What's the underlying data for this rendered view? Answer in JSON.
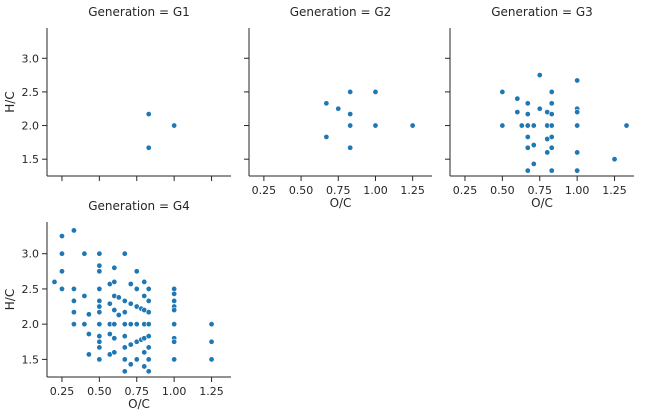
{
  "colors": {
    "point": "#1f77b4",
    "axis": "#262626"
  },
  "chart_data": [
    {
      "type": "scatter",
      "title": "Generation = G1",
      "xlabel": "",
      "ylabel": "H/C",
      "xlim": [
        0.15,
        1.38
      ],
      "ylim": [
        1.25,
        3.45
      ],
      "xticks": [
        0.25,
        0.5,
        0.75,
        1.0,
        1.25
      ],
      "xtick_labels": [],
      "yticks": [
        1.5,
        2.0,
        2.5,
        3.0
      ],
      "ytick_labels": [
        "1.5",
        "2.0",
        "2.5",
        "3.0"
      ],
      "points": [
        [
          0.83,
          2.17
        ],
        [
          0.83,
          1.67
        ],
        [
          1.0,
          2.0
        ]
      ]
    },
    {
      "type": "scatter",
      "title": "Generation = G2",
      "xlabel": "O/C",
      "ylabel": "",
      "xlim": [
        0.15,
        1.38
      ],
      "ylim": [
        1.25,
        3.45
      ],
      "xticks": [
        0.25,
        0.5,
        0.75,
        1.0,
        1.25
      ],
      "xtick_labels": [
        "0.25",
        "0.50",
        "0.75",
        "1.00",
        "1.25"
      ],
      "yticks": [
        1.5,
        2.0,
        2.5,
        3.0
      ],
      "ytick_labels": [],
      "points": [
        [
          0.67,
          2.33
        ],
        [
          0.67,
          1.83
        ],
        [
          0.75,
          2.25
        ],
        [
          0.83,
          2.5
        ],
        [
          0.83,
          2.17
        ],
        [
          0.83,
          2.0
        ],
        [
          0.83,
          1.67
        ],
        [
          1.0,
          2.5
        ],
        [
          1.0,
          2.0
        ],
        [
          1.25,
          2.0
        ]
      ]
    },
    {
      "type": "scatter",
      "title": "Generation = G3",
      "xlabel": "O/C",
      "ylabel": "",
      "xlim": [
        0.15,
        1.38
      ],
      "ylim": [
        1.25,
        3.45
      ],
      "xticks": [
        0.25,
        0.5,
        0.75,
        1.0,
        1.25
      ],
      "xtick_labels": [
        "0.25",
        "0.50",
        "0.75",
        "1.00",
        "1.25"
      ],
      "yticks": [
        1.5,
        2.0,
        2.5,
        3.0
      ],
      "ytick_labels": [],
      "points": [
        [
          0.5,
          2.5
        ],
        [
          0.5,
          2.0
        ],
        [
          0.6,
          2.4
        ],
        [
          0.6,
          2.2
        ],
        [
          0.63,
          2.0
        ],
        [
          0.67,
          2.33
        ],
        [
          0.67,
          2.17
        ],
        [
          0.67,
          2.0
        ],
        [
          0.67,
          1.83
        ],
        [
          0.67,
          1.67
        ],
        [
          0.67,
          1.33
        ],
        [
          0.71,
          2.0
        ],
        [
          0.71,
          1.71
        ],
        [
          0.71,
          1.43
        ],
        [
          0.75,
          2.75
        ],
        [
          0.75,
          2.25
        ],
        [
          0.8,
          2.2
        ],
        [
          0.8,
          2.0
        ],
        [
          0.8,
          1.8
        ],
        [
          0.8,
          1.6
        ],
        [
          0.83,
          2.5
        ],
        [
          0.83,
          2.33
        ],
        [
          0.83,
          2.17
        ],
        [
          0.83,
          2.0
        ],
        [
          0.83,
          1.83
        ],
        [
          0.83,
          1.67
        ],
        [
          0.83,
          1.33
        ],
        [
          1.0,
          2.67
        ],
        [
          1.0,
          2.25
        ],
        [
          1.0,
          2.2
        ],
        [
          1.0,
          2.0
        ],
        [
          1.0,
          1.6
        ],
        [
          1.0,
          1.33
        ],
        [
          1.25,
          1.5
        ],
        [
          1.33,
          2.0
        ]
      ]
    },
    {
      "type": "scatter",
      "title": "Generation = G4",
      "xlabel": "O/C",
      "ylabel": "H/C",
      "xlim": [
        0.15,
        1.38
      ],
      "ylim": [
        1.25,
        3.45
      ],
      "xticks": [
        0.25,
        0.5,
        0.75,
        1.0,
        1.25
      ],
      "xtick_labels": [
        "0.25",
        "0.50",
        "0.75",
        "1.00",
        "1.25"
      ],
      "yticks": [
        1.5,
        2.0,
        2.5,
        3.0
      ],
      "ytick_labels": [
        "1.5",
        "2.0",
        "2.5",
        "3.0"
      ],
      "points": [
        [
          0.2,
          2.6
        ],
        [
          0.25,
          3.25
        ],
        [
          0.25,
          3.0
        ],
        [
          0.25,
          2.75
        ],
        [
          0.25,
          2.5
        ],
        [
          0.33,
          3.33
        ],
        [
          0.33,
          2.5
        ],
        [
          0.33,
          2.33
        ],
        [
          0.33,
          2.17
        ],
        [
          0.33,
          2.0
        ],
        [
          0.4,
          3.0
        ],
        [
          0.4,
          2.4
        ],
        [
          0.4,
          2.0
        ],
        [
          0.43,
          2.14
        ],
        [
          0.43,
          1.86
        ],
        [
          0.43,
          1.57
        ],
        [
          0.5,
          3.0
        ],
        [
          0.5,
          2.83
        ],
        [
          0.5,
          2.75
        ],
        [
          0.5,
          2.5
        ],
        [
          0.5,
          2.33
        ],
        [
          0.5,
          2.25
        ],
        [
          0.5,
          2.17
        ],
        [
          0.5,
          2.0
        ],
        [
          0.5,
          1.83
        ],
        [
          0.5,
          1.75
        ],
        [
          0.5,
          1.67
        ],
        [
          0.5,
          1.5
        ],
        [
          0.57,
          2.57
        ],
        [
          0.57,
          2.29
        ],
        [
          0.57,
          2.0
        ],
        [
          0.57,
          1.86
        ],
        [
          0.57,
          1.57
        ],
        [
          0.6,
          2.8
        ],
        [
          0.6,
          2.6
        ],
        [
          0.6,
          2.4
        ],
        [
          0.6,
          2.2
        ],
        [
          0.6,
          2.0
        ],
        [
          0.6,
          1.8
        ],
        [
          0.6,
          1.6
        ],
        [
          0.63,
          2.38
        ],
        [
          0.63,
          2.13
        ],
        [
          0.67,
          3.0
        ],
        [
          0.67,
          2.33
        ],
        [
          0.67,
          2.17
        ],
        [
          0.67,
          2.0
        ],
        [
          0.67,
          1.83
        ],
        [
          0.67,
          1.67
        ],
        [
          0.67,
          1.5
        ],
        [
          0.67,
          1.33
        ],
        [
          0.71,
          2.57
        ],
        [
          0.71,
          2.29
        ],
        [
          0.71,
          2.0
        ],
        [
          0.71,
          1.71
        ],
        [
          0.71,
          1.43
        ],
        [
          0.75,
          2.75
        ],
        [
          0.75,
          2.5
        ],
        [
          0.75,
          2.25
        ],
        [
          0.75,
          2.0
        ],
        [
          0.75,
          1.75
        ],
        [
          0.75,
          1.5
        ],
        [
          0.78,
          2.22
        ],
        [
          0.78,
          1.78
        ],
        [
          0.8,
          2.6
        ],
        [
          0.8,
          2.4
        ],
        [
          0.8,
          2.2
        ],
        [
          0.8,
          2.0
        ],
        [
          0.8,
          1.8
        ],
        [
          0.8,
          1.6
        ],
        [
          0.8,
          1.4
        ],
        [
          0.83,
          2.5
        ],
        [
          0.83,
          2.33
        ],
        [
          0.83,
          2.17
        ],
        [
          0.83,
          2.0
        ],
        [
          0.83,
          1.83
        ],
        [
          0.83,
          1.67
        ],
        [
          0.83,
          1.5
        ],
        [
          0.83,
          1.33
        ],
        [
          1.0,
          2.5
        ],
        [
          1.0,
          2.43
        ],
        [
          1.0,
          2.33
        ],
        [
          1.0,
          2.25
        ],
        [
          1.0,
          2.2
        ],
        [
          1.0,
          2.0
        ],
        [
          1.0,
          1.8
        ],
        [
          1.0,
          1.75
        ],
        [
          1.0,
          1.5
        ],
        [
          1.25,
          2.0
        ],
        [
          1.25,
          1.75
        ],
        [
          1.25,
          1.5
        ]
      ]
    }
  ]
}
